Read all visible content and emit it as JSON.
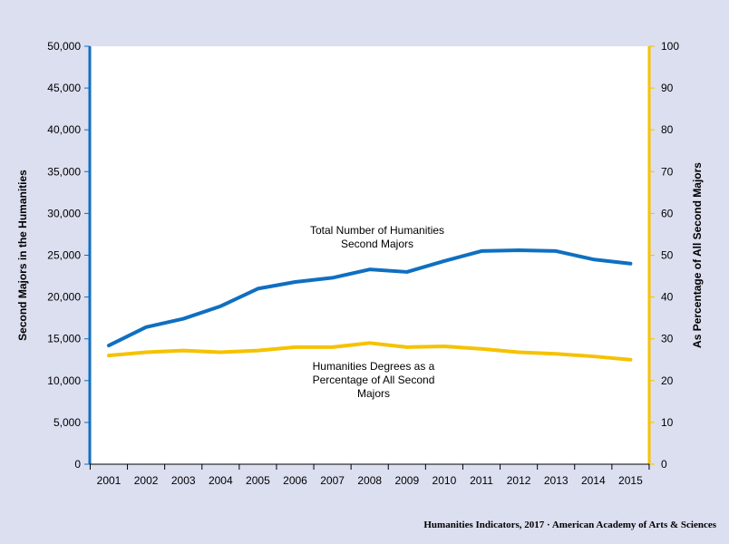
{
  "chart_data": {
    "type": "line",
    "categories": [
      "2001",
      "2002",
      "2003",
      "2004",
      "2005",
      "2006",
      "2007",
      "2008",
      "2009",
      "2010",
      "2011",
      "2012",
      "2013",
      "2014",
      "2015"
    ],
    "series": [
      {
        "name": "Total Number of Humanities Second Majors",
        "axis": "left",
        "color": "#0f6fc1",
        "values": [
          14200,
          16400,
          17400,
          18900,
          21000,
          21800,
          22300,
          23300,
          23000,
          24300,
          25500,
          25600,
          25500,
          24500,
          24000
        ]
      },
      {
        "name": "Humanities Degrees as a Percentage of All Second Majors",
        "axis": "right",
        "color": "#f5c200",
        "values": [
          26.0,
          26.8,
          27.2,
          26.8,
          27.2,
          28.0,
          28.0,
          29.0,
          28.0,
          28.2,
          27.6,
          26.8,
          26.4,
          25.8,
          25.0
        ]
      }
    ],
    "ylabel": "Second Majors in the Humanities",
    "y2label": "As Percentage of All Second Majors",
    "ylim": [
      0,
      50000
    ],
    "y2lim": [
      0,
      100
    ],
    "yticks": [
      "0",
      "5,000",
      "10,000",
      "15,000",
      "20,000",
      "25,000",
      "30,000",
      "35,000",
      "40,000",
      "45,000",
      "50,000"
    ],
    "y2ticks": [
      "0",
      "10",
      "20",
      "30",
      "40",
      "50",
      "60",
      "70",
      "80",
      "90",
      "100"
    ],
    "annotations": [
      {
        "lines": [
          "Total Number of Humanities",
          "Second Majors"
        ]
      },
      {
        "lines": [
          "Humanities Degrees as a",
          "Percentage of All Second",
          "Majors"
        ]
      }
    ],
    "grid": false,
    "legend": "none"
  },
  "footer": "Humanities Indicators, 2017 · American Academy of Arts & Sciences"
}
